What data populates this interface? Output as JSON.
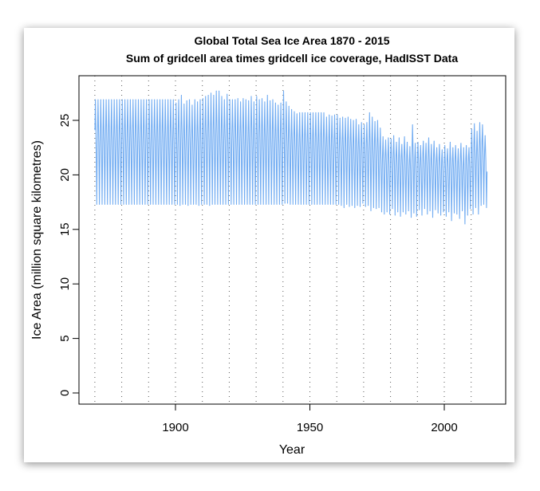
{
  "chart_data": {
    "type": "line",
    "title": "Global Total Sea Ice Area 1870 - 2015",
    "subtitle": "Sum of gridcell area times gridcell ice coverage, HadISST Data",
    "xlabel": "Year",
    "ylabel": "Ice Area (million square kilometres)",
    "xlim": [
      1865,
      2024
    ],
    "ylim": [
      -1,
      29
    ],
    "x_ticks": [
      "1900",
      "1950",
      "2000"
    ],
    "x_tick_values": [
      1900,
      1950,
      2000
    ],
    "y_ticks": [
      "0",
      "5",
      "10",
      "15",
      "20",
      "25"
    ],
    "y_tick_values": [
      0,
      5,
      10,
      15,
      20,
      25
    ],
    "grid": "vertical dotted lines every 10 years",
    "gridlines_x": [
      1870,
      1880,
      1890,
      1900,
      1910,
      1920,
      1930,
      1940,
      1950,
      1960,
      1970,
      1980,
      1990,
      2000,
      2010
    ],
    "line_color": "#5b9ff0",
    "series_note": "monthly values; annual maximum and minimum listed",
    "start_year": 1870,
    "annual_max": [
      26.9,
      26.9,
      26.9,
      26.9,
      26.9,
      26.9,
      26.9,
      26.9,
      26.9,
      26.9,
      26.9,
      26.9,
      26.9,
      26.9,
      26.9,
      26.9,
      26.9,
      26.9,
      26.9,
      26.9,
      26.9,
      26.9,
      26.9,
      26.9,
      26.9,
      26.9,
      26.9,
      26.9,
      26.9,
      26.9,
      26.6,
      26.9,
      27.3,
      26.5,
      26.8,
      26.9,
      26.4,
      26.9,
      26.7,
      26.9,
      27.0,
      27.2,
      27.3,
      27.5,
      27.3,
      27.7,
      27.7,
      27.2,
      26.9,
      27.4,
      26.9,
      26.9,
      26.9,
      27.0,
      26.7,
      27.0,
      26.9,
      26.8,
      27.2,
      26.7,
      27.2,
      26.9,
      27.0,
      26.7,
      27.3,
      26.8,
      26.9,
      26.6,
      26.4,
      26.6,
      27.7,
      26.7,
      26.3,
      26.0,
      25.8,
      25.6,
      25.7,
      25.7,
      25.7,
      25.7,
      25.7,
      25.7,
      25.7,
      25.7,
      25.7,
      25.7,
      25.3,
      25.5,
      25.4,
      25.5,
      25.5,
      25.2,
      25.3,
      25.2,
      25.3,
      25.1,
      25.0,
      25.1,
      24.6,
      24.8,
      24.6,
      24.8,
      25.7,
      25.3,
      24.9,
      25.0,
      24.3,
      23.5,
      23.2,
      23.4,
      23.3,
      23.6,
      23.0,
      23.4,
      22.8,
      23.5,
      23.0,
      22.6,
      24.6,
      22.9,
      23.0,
      22.7,
      23.1,
      22.9,
      23.4,
      22.8,
      23.1,
      22.5,
      22.8,
      22.3,
      22.7,
      22.4,
      23.0,
      22.5,
      22.7,
      22.4,
      22.9,
      22.5,
      22.7,
      22.5,
      24.2,
      24.7,
      24.0,
      24.8,
      24.6,
      23.6
    ],
    "annual_min": [
      17.3,
      17.3,
      17.3,
      17.3,
      17.3,
      17.3,
      17.3,
      17.3,
      17.3,
      17.3,
      17.3,
      17.3,
      17.3,
      17.3,
      17.3,
      17.3,
      17.3,
      17.3,
      17.3,
      17.3,
      17.3,
      17.3,
      17.3,
      17.3,
      17.3,
      17.3,
      17.3,
      17.3,
      17.3,
      17.3,
      17.3,
      17.2,
      17.3,
      17.3,
      17.2,
      17.3,
      17.3,
      17.3,
      17.2,
      17.3,
      17.3,
      17.3,
      17.2,
      17.3,
      17.3,
      17.3,
      17.3,
      17.3,
      17.3,
      17.3,
      17.3,
      17.3,
      17.3,
      17.3,
      17.3,
      17.3,
      17.3,
      17.3,
      17.3,
      17.3,
      17.3,
      17.3,
      17.3,
      17.3,
      17.3,
      17.3,
      17.3,
      17.3,
      17.3,
      17.3,
      17.4,
      17.4,
      17.3,
      17.3,
      17.3,
      17.3,
      17.3,
      17.3,
      17.3,
      17.3,
      17.3,
      17.3,
      17.3,
      17.3,
      17.3,
      17.3,
      17.3,
      17.3,
      17.3,
      17.3,
      17.3,
      17.2,
      17.0,
      17.3,
      17.1,
      17.2,
      17.0,
      17.2,
      17.1,
      17.4,
      17.1,
      17.2,
      16.7,
      17.0,
      16.9,
      17.0,
      16.6,
      16.4,
      16.6,
      16.4,
      16.9,
      16.3,
      16.6,
      16.2,
      16.6,
      16.4,
      16.7,
      16.1,
      16.5,
      16.2,
      16.8,
      16.3,
      16.9,
      16.4,
      16.7,
      16.1,
      16.8,
      16.5,
      16.3,
      16.6,
      16.2,
      16.6,
      15.8,
      16.5,
      16.4,
      16.0,
      16.7,
      15.5,
      16.3,
      16.9,
      16.4,
      17.0,
      16.4,
      17.2,
      17.3,
      17.0
    ]
  }
}
